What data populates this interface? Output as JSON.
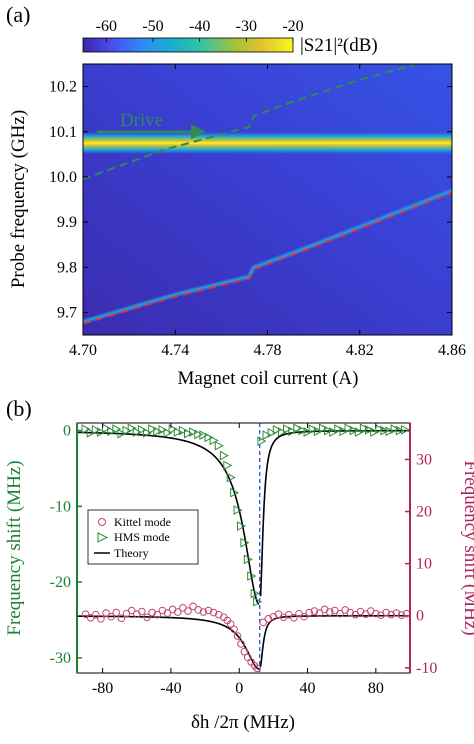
{
  "chart_data": [
    {
      "type": "heatmap",
      "panel_label": "(a)",
      "xlabel": "Magnet coil current (A)",
      "ylabel": "Probe frequency (GHz)",
      "xlim": [
        4.7,
        4.86
      ],
      "ylim": [
        9.65,
        10.25
      ],
      "xticks": [
        "4.70",
        "4.74",
        "4.78",
        "4.82",
        "4.86"
      ],
      "yticks": [
        "9.7",
        "9.8",
        "9.9",
        "10.0",
        "10.1",
        "10.2"
      ],
      "colorbar": {
        "label": "|S21|²(dB)",
        "range": [
          -65,
          -20
        ],
        "ticks": [
          "-60",
          "-50",
          "-40",
          "-30",
          "-20"
        ],
        "colors": [
          "#3d26a8",
          "#4a4ff1",
          "#2f8bf4",
          "#17b0cf",
          "#3ac19f",
          "#9dc33d",
          "#e6c32d",
          "#f9f921"
        ]
      },
      "annotation": "Drive",
      "horizontal_band": {
        "frequency_ghz": 10.075
      },
      "series": [
        {
          "style": "dashed",
          "color": "#2e8b57",
          "x": [
            4.7,
            4.735,
            4.77,
            4.772,
            4.774,
            4.79,
            4.82,
            4.86
          ],
          "y": [
            9.995,
            10.06,
            10.108,
            10.11,
            10.135,
            10.165,
            10.215,
            10.272
          ]
        },
        {
          "style": "dashed",
          "color": "#d9334a",
          "x": [
            4.7,
            4.74,
            4.772,
            4.774,
            4.8,
            4.83,
            4.86
          ],
          "y": [
            9.675,
            9.735,
            9.775,
            9.795,
            9.845,
            9.905,
            9.965
          ]
        }
      ]
    },
    {
      "type": "scatter",
      "panel_label": "(b)",
      "xlabel": "δh /2π (MHz)",
      "ylabel_left": "Frequency shift (MHz)",
      "ylabel_right": "Frequency shift (MHz)",
      "xlim": [
        -95,
        100
      ],
      "ylim_left": [
        -32,
        1
      ],
      "ylim_right": [
        -11,
        37
      ],
      "xticks": [
        "-80",
        "-40",
        "0",
        "40",
        "80"
      ],
      "yticks_left": [
        "0",
        "-10",
        "-20",
        "-30"
      ],
      "yticks_right": [
        "30",
        "20",
        "10",
        "0",
        "-10"
      ],
      "legend": [
        "Kittel mode",
        "HMS mode",
        "Theory"
      ],
      "legend_position": "center-left",
      "colors": {
        "left_axis": "#1e7f35",
        "right_axis": "#b0245c",
        "kittel": "#c2486e",
        "hms": "#2e8b3a",
        "theory": "#000000",
        "marker_line": "#1f3fff"
      },
      "resonance_x": 12,
      "hms_points": [
        [
          -90,
          0.2
        ],
        [
          -87,
          -0.3
        ],
        [
          -84,
          0.1
        ],
        [
          -81,
          -0.2
        ],
        [
          -78,
          0.3
        ],
        [
          -75,
          -0.1
        ],
        [
          -72,
          0.2
        ],
        [
          -69,
          -0.4
        ],
        [
          -66,
          0.0
        ],
        [
          -63,
          0.3
        ],
        [
          -60,
          -0.2
        ],
        [
          -57,
          0.1
        ],
        [
          -54,
          -0.3
        ],
        [
          -51,
          0.2
        ],
        [
          -48,
          -0.1
        ],
        [
          -45,
          0.1
        ],
        [
          -42,
          -0.3
        ],
        [
          -39,
          0.2
        ],
        [
          -36,
          -0.2
        ],
        [
          -33,
          0.0
        ],
        [
          -30,
          -0.4
        ],
        [
          -27,
          -0.2
        ],
        [
          -24,
          -0.5
        ],
        [
          -21,
          -0.6
        ],
        [
          -18,
          -0.9
        ],
        [
          -15,
          -1.3
        ],
        [
          -12,
          -2.0
        ],
        [
          -9,
          -3.3
        ],
        [
          -7,
          -4.6
        ],
        [
          -5,
          -6.2
        ],
        [
          -3,
          -8.2
        ],
        [
          -1,
          -10.5
        ],
        [
          1,
          -12.6
        ],
        [
          3,
          -14.8
        ],
        [
          5,
          -17.0
        ],
        [
          7,
          -19.2
        ],
        [
          9,
          -21.5
        ],
        [
          10.5,
          -22.6
        ],
        [
          13,
          -1.4
        ],
        [
          16,
          -0.6
        ],
        [
          19,
          -0.3
        ],
        [
          22,
          0.1
        ],
        [
          25,
          -0.2
        ],
        [
          28,
          0.2
        ],
        [
          31,
          -0.1
        ],
        [
          34,
          0.3
        ],
        [
          37,
          0.0
        ],
        [
          40,
          -0.2
        ],
        [
          43,
          0.2
        ],
        [
          46,
          -0.1
        ],
        [
          49,
          0.3
        ],
        [
          52,
          0.0
        ],
        [
          55,
          -0.2
        ],
        [
          58,
          0.2
        ],
        [
          61,
          -0.1
        ],
        [
          64,
          0.3
        ],
        [
          67,
          0.0
        ],
        [
          70,
          -0.2
        ],
        [
          73,
          0.3
        ],
        [
          76,
          0.1
        ],
        [
          79,
          -0.2
        ],
        [
          82,
          0.2
        ],
        [
          85,
          0.0
        ],
        [
          88,
          -0.1
        ],
        [
          91,
          0.2
        ],
        [
          94,
          0.0
        ],
        [
          97,
          0.1
        ]
      ],
      "kittel_points": [
        [
          -90,
          0.3
        ],
        [
          -87,
          -0.4
        ],
        [
          -84,
          0.2
        ],
        [
          -81,
          -0.6
        ],
        [
          -78,
          0.5
        ],
        [
          -75,
          -0.2
        ],
        [
          -72,
          0.6
        ],
        [
          -69,
          -0.5
        ],
        [
          -66,
          0.4
        ],
        [
          -63,
          1.0
        ],
        [
          -60,
          0.3
        ],
        [
          -57,
          0.8
        ],
        [
          -54,
          -0.3
        ],
        [
          -51,
          0.6
        ],
        [
          -48,
          0.2
        ],
        [
          -45,
          1.0
        ],
        [
          -42,
          0.5
        ],
        [
          -39,
          1.2
        ],
        [
          -36,
          0.7
        ],
        [
          -33,
          1.5
        ],
        [
          -30,
          0.9
        ],
        [
          -27,
          1.8
        ],
        [
          -24,
          1.1
        ],
        [
          -21,
          0.7
        ],
        [
          -18,
          1.0
        ],
        [
          -15,
          0.6
        ],
        [
          -12,
          0.2
        ],
        [
          -9,
          -0.3
        ],
        [
          -7,
          -0.9
        ],
        [
          -5,
          -1.6
        ],
        [
          -3,
          -2.6
        ],
        [
          -1,
          -3.9
        ],
        [
          1,
          -5.4
        ],
        [
          3,
          -6.9
        ],
        [
          5,
          -8.0
        ],
        [
          7,
          -8.9
        ],
        [
          9,
          -9.6
        ],
        [
          10.5,
          -10.1
        ],
        [
          14,
          -1.3
        ],
        [
          17,
          -0.6
        ],
        [
          20,
          -0.2
        ],
        [
          23,
          0.3
        ],
        [
          26,
          -0.3
        ],
        [
          29,
          0.2
        ],
        [
          32,
          -0.4
        ],
        [
          35,
          0.4
        ],
        [
          38,
          -0.2
        ],
        [
          41,
          0.6
        ],
        [
          44,
          0.9
        ],
        [
          47,
          0.5
        ],
        [
          50,
          1.2
        ],
        [
          53,
          0.7
        ],
        [
          56,
          1.0
        ],
        [
          59,
          0.4
        ],
        [
          62,
          1.1
        ],
        [
          65,
          0.6
        ],
        [
          68,
          0.2
        ],
        [
          71,
          0.8
        ],
        [
          74,
          0.3
        ],
        [
          77,
          0.9
        ],
        [
          80,
          0.4
        ],
        [
          83,
          0.1
        ],
        [
          86,
          0.6
        ],
        [
          89,
          0.2
        ],
        [
          92,
          0.5
        ],
        [
          95,
          0.1
        ],
        [
          98,
          0.4
        ]
      ]
    }
  ]
}
